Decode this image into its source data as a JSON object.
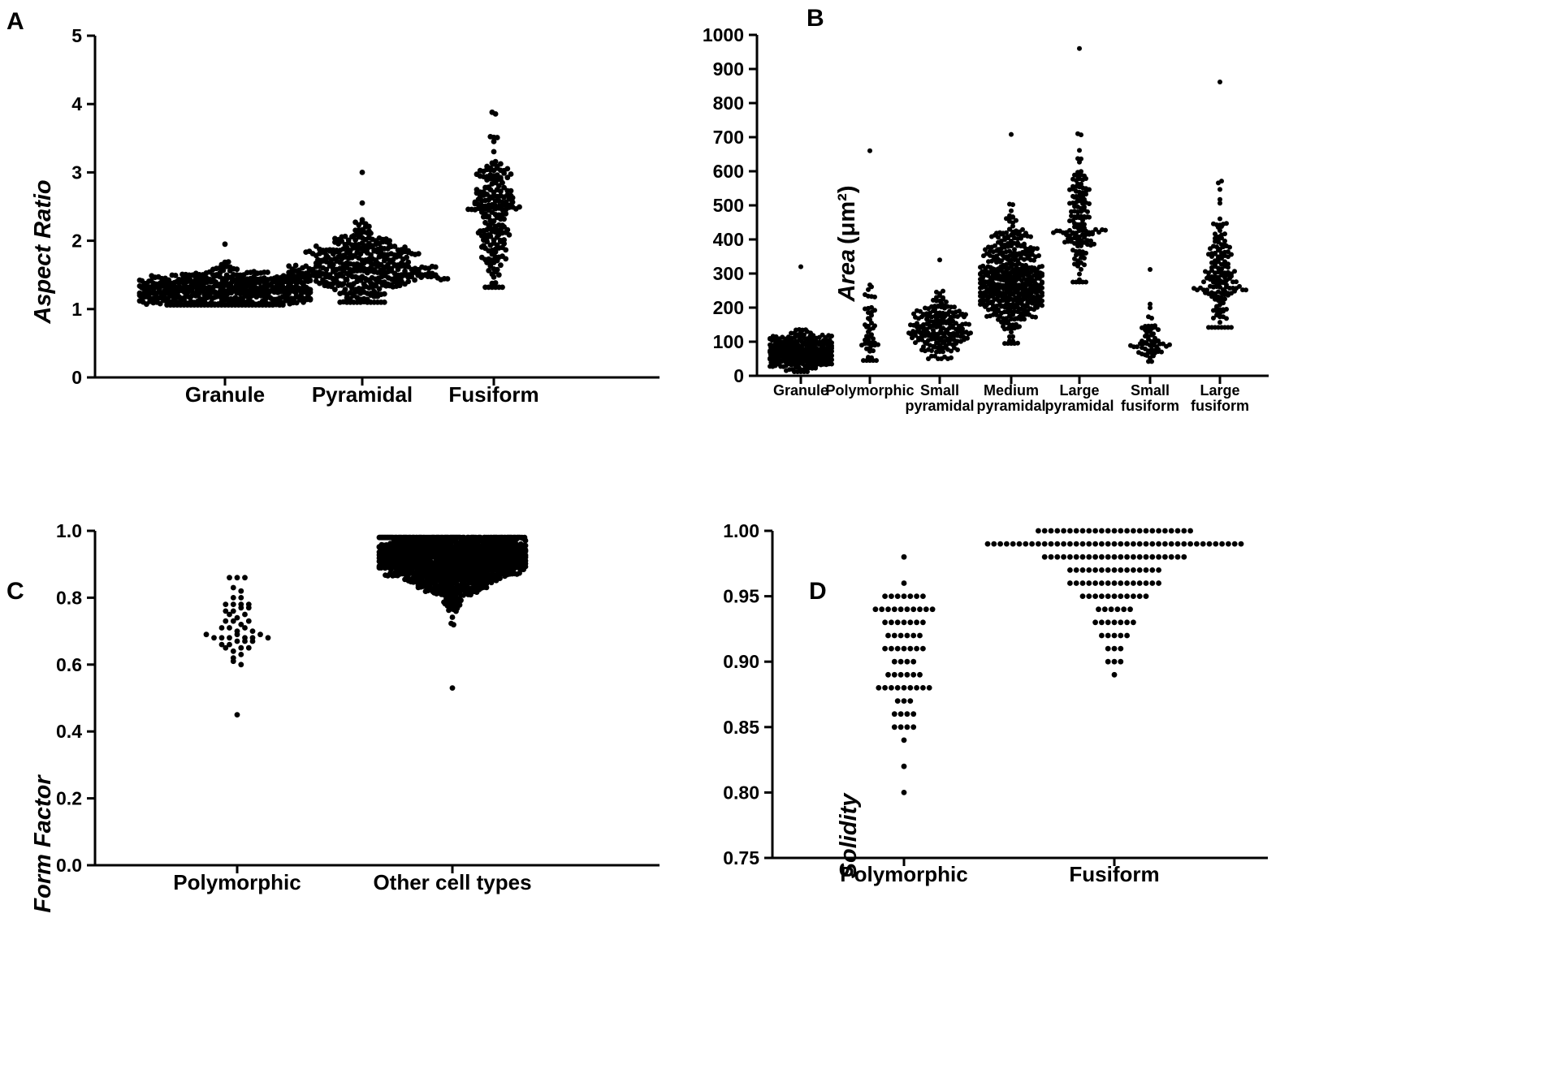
{
  "colors": {
    "dots": "#000000",
    "axes": "#000000",
    "background": "#ffffff"
  },
  "chart_data": [
    {
      "panel": "A",
      "type": "scatter",
      "subtype": "beeswarm",
      "ylabel": "Aspect Ratio",
      "xlabel": "",
      "categories": [
        "Granule",
        "Pyramidal",
        "Fusiform"
      ],
      "ylim": [
        0,
        5
      ],
      "yticks": [
        "0",
        "1",
        "2",
        "3",
        "4",
        "5"
      ],
      "series": [
        {
          "name": "Granule",
          "min": 1.06,
          "q1": 1.18,
          "median": 1.28,
          "q3": 1.38,
          "max": 1.95,
          "n": 500
        },
        {
          "name": "Pyramidal",
          "min": 1.1,
          "q1": 1.42,
          "median": 1.58,
          "q3": 1.78,
          "max": 3.0,
          "n": 400
        },
        {
          "name": "Fusiform",
          "min": 1.32,
          "q1": 2.1,
          "median": 2.45,
          "q3": 2.75,
          "max": 3.88,
          "n": 200
        }
      ]
    },
    {
      "panel": "B",
      "type": "scatter",
      "subtype": "beeswarm",
      "ylabel": "Area",
      "ylabel_unit": "(μm²)",
      "xlabel": "",
      "categories": [
        [
          "Granule"
        ],
        [
          "Polymorphic"
        ],
        [
          "Small",
          "pyramidal"
        ],
        [
          "Medium",
          "pyramidal"
        ],
        [
          "Large",
          "pyramidal"
        ],
        [
          "Small",
          "fusiform"
        ],
        [
          "Large",
          "fusiform"
        ]
      ],
      "ylim": [
        0,
        1000
      ],
      "yticks": [
        "0",
        "100",
        "200",
        "300",
        "400",
        "500",
        "600",
        "700",
        "800",
        "900",
        "1000"
      ],
      "series": [
        {
          "name": "Granule",
          "min": 12,
          "q1": 50,
          "median": 65,
          "q3": 85,
          "max": 320,
          "n": 450
        },
        {
          "name": "Polymorphic",
          "min": 45,
          "q1": 80,
          "median": 110,
          "q3": 165,
          "max": 660,
          "n": 50
        },
        {
          "name": "Small pyramidal",
          "min": 50,
          "q1": 105,
          "median": 130,
          "q3": 165,
          "max": 340,
          "n": 200
        },
        {
          "name": "Medium pyramidal",
          "min": 95,
          "q1": 230,
          "median": 270,
          "q3": 330,
          "max": 708,
          "n": 500
        },
        {
          "name": "Large pyramidal",
          "min": 275,
          "q1": 390,
          "median": 445,
          "q3": 510,
          "max": 960,
          "n": 150
        },
        {
          "name": "Small fusiform",
          "min": 42,
          "q1": 75,
          "median": 95,
          "q3": 125,
          "max": 312,
          "n": 60
        },
        {
          "name": "Large fusiform",
          "min": 142,
          "q1": 230,
          "median": 285,
          "q3": 350,
          "max": 862,
          "n": 160
        }
      ]
    },
    {
      "panel": "C",
      "type": "scatter",
      "subtype": "beeswarm",
      "ylabel": "Form Factor",
      "xlabel": "",
      "categories": [
        "Polymorphic",
        "Other cell types"
      ],
      "ylim": [
        0,
        1.0
      ],
      "yticks": [
        "0.0",
        "0.2",
        "0.4",
        "0.6",
        "0.8",
        "1.0"
      ],
      "series": [
        {
          "name": "Polymorphic",
          "min": 0.45,
          "q1": 0.65,
          "median": 0.7,
          "q3": 0.76,
          "max": 0.86,
          "n": 50
        },
        {
          "name": "Other cell types",
          "min": 0.53,
          "q1": 0.88,
          "median": 0.92,
          "q3": 0.95,
          "max": 0.98,
          "n": 1200
        }
      ]
    },
    {
      "panel": "D",
      "type": "scatter",
      "subtype": "beeswarm",
      "ylabel": "Solidity",
      "xlabel": "",
      "categories": [
        "Polymorphic",
        "Fusiform"
      ],
      "ylim": [
        0.75,
        1.0
      ],
      "yticks": [
        "0.75",
        "0.80",
        "0.85",
        "0.90",
        "0.95",
        "1.00"
      ],
      "series": [
        {
          "name": "Polymorphic",
          "levels": [
            {
              "value": 0.98,
              "count": 1
            },
            {
              "value": 0.96,
              "count": 1
            },
            {
              "value": 0.95,
              "count": 7
            },
            {
              "value": 0.94,
              "count": 10
            },
            {
              "value": 0.93,
              "count": 7
            },
            {
              "value": 0.92,
              "count": 6
            },
            {
              "value": 0.91,
              "count": 7
            },
            {
              "value": 0.9,
              "count": 4
            },
            {
              "value": 0.89,
              "count": 6
            },
            {
              "value": 0.88,
              "count": 9
            },
            {
              "value": 0.87,
              "count": 3
            },
            {
              "value": 0.86,
              "count": 4
            },
            {
              "value": 0.85,
              "count": 4
            },
            {
              "value": 0.84,
              "count": 1
            },
            {
              "value": 0.82,
              "count": 1
            },
            {
              "value": 0.8,
              "count": 1
            }
          ]
        },
        {
          "name": "Fusiform",
          "levels": [
            {
              "value": 1.0,
              "count": 25
            },
            {
              "value": 0.99,
              "count": 41
            },
            {
              "value": 0.98,
              "count": 23
            },
            {
              "value": 0.97,
              "count": 15
            },
            {
              "value": 0.96,
              "count": 15
            },
            {
              "value": 0.95,
              "count": 11
            },
            {
              "value": 0.94,
              "count": 6
            },
            {
              "value": 0.93,
              "count": 7
            },
            {
              "value": 0.92,
              "count": 5
            },
            {
              "value": 0.91,
              "count": 3
            },
            {
              "value": 0.9,
              "count": 3
            },
            {
              "value": 0.89,
              "count": 1
            }
          ]
        }
      ]
    }
  ]
}
